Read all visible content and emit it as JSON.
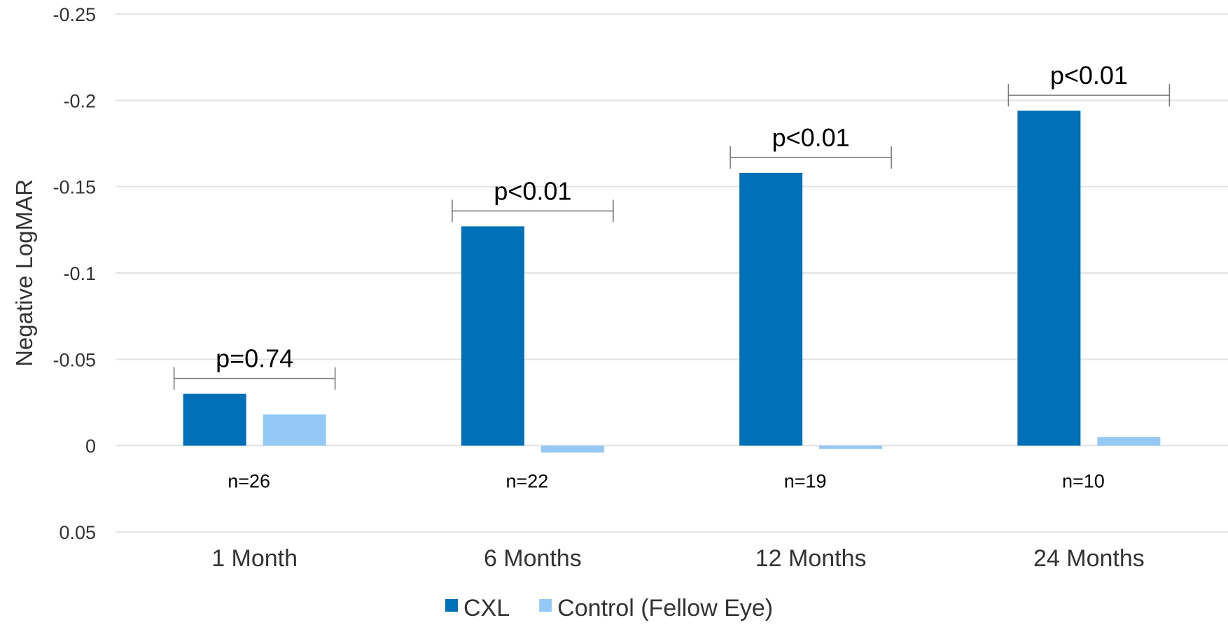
{
  "chart_data": {
    "type": "bar",
    "ylabel": "Negative LogMAR",
    "y_inverted": true,
    "ylim": [
      0.05,
      -0.25
    ],
    "y_ticks": [
      {
        "value": -0.25,
        "label": "-0.25"
      },
      {
        "value": -0.2,
        "label": "-0.2"
      },
      {
        "value": -0.15,
        "label": "-0.15"
      },
      {
        "value": -0.1,
        "label": "-0.1"
      },
      {
        "value": -0.05,
        "label": "-0.05"
      },
      {
        "value": 0,
        "label": "0"
      },
      {
        "value": 0.05,
        "label": "0.05"
      }
    ],
    "grid": true,
    "legend_position": "bottom",
    "categories": [
      "1 Month",
      "6 Months",
      "12 Months",
      "24 Months"
    ],
    "series": [
      {
        "name": "CXL",
        "color": "#0070b8",
        "values": [
          -0.03,
          -0.127,
          -0.158,
          -0.194
        ]
      },
      {
        "name": "Control (Fellow Eye)",
        "color": "#94c8f5",
        "values": [
          -0.018,
          0.004,
          0.002,
          -0.005
        ]
      }
    ],
    "annotations": {
      "p_values": [
        "p=0.74",
        "p<0.01",
        "p<0.01",
        "p<0.01"
      ],
      "n_values": [
        "n=26",
        "n=22",
        "n=19",
        "n=10"
      ]
    },
    "colors": {
      "grid": "#e3e3e3",
      "bracket": "#7a7a7a",
      "text": "#333333"
    }
  }
}
